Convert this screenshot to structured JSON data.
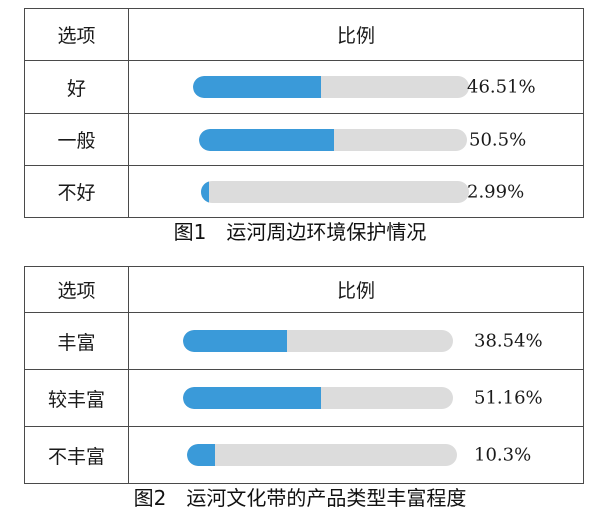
{
  "chart_data": [
    {
      "type": "table",
      "headers": [
        "选项",
        "比例"
      ],
      "rows": [
        {
          "option": "好",
          "value": 46.51,
          "label": "46.51%"
        },
        {
          "option": "一般",
          "value": 50.5,
          "label": "50.5%"
        },
        {
          "option": "不好",
          "value": 2.99,
          "label": "2.99%"
        }
      ],
      "caption": "图1　运河周边环境保护情况",
      "colors": {
        "fill": "#3a9ad9",
        "track": "#dcdcdc"
      }
    },
    {
      "type": "table",
      "headers": [
        "选项",
        "比例"
      ],
      "rows": [
        {
          "option": "丰富",
          "value": 38.54,
          "label": "38.54%"
        },
        {
          "option": "较丰富",
          "value": 51.16,
          "label": "51.16%"
        },
        {
          "option": "不丰富",
          "value": 10.3,
          "label": "10.3%"
        }
      ],
      "caption": "图2　运河文化带的产品类型丰富程度",
      "colors": {
        "fill": "#3a9ad9",
        "track": "#dcdcdc"
      }
    }
  ]
}
